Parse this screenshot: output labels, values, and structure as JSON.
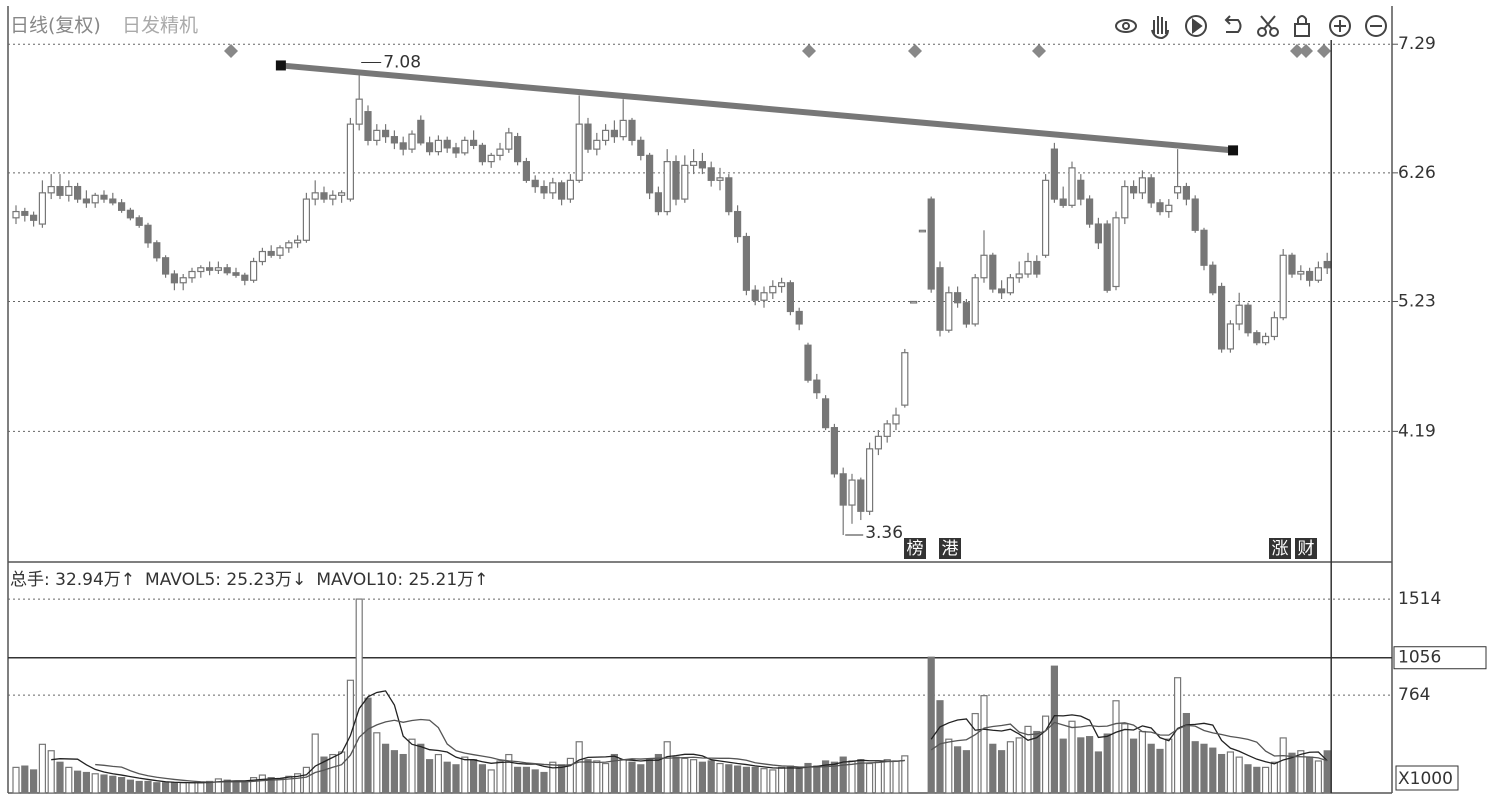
{
  "chart_data": [
    {
      "type": "candlestick",
      "title": "日线(复权)",
      "subtitle": "日发精机",
      "ylim": [
        3.16,
        7.58
      ],
      "yticks": [
        4.19,
        5.23,
        6.26,
        7.29
      ],
      "grid": true,
      "color": "#777777",
      "trendline": [
        [
          30.1,
          7.12
        ],
        [
          138.3,
          6.44
        ]
      ],
      "events": [
        "榜",
        "港",
        "涨",
        "财"
      ],
      "open": [
        5.9,
        5.95,
        5.92,
        5.85,
        6.1,
        6.15,
        6.08,
        6.15,
        6.05,
        6.02,
        6.08,
        6.05,
        6.02,
        5.96,
        5.9,
        5.84,
        5.7,
        5.58,
        5.45,
        5.38,
        5.42,
        5.47,
        5.5,
        5.48,
        5.5,
        5.46,
        5.44,
        5.4,
        5.55,
        5.63,
        5.6,
        5.66,
        5.7,
        5.72,
        6.05,
        6.1,
        6.05,
        6.08,
        6.05,
        6.65,
        6.75,
        6.52,
        6.6,
        6.55,
        6.5,
        6.45,
        6.68,
        6.5,
        6.43,
        6.52,
        6.46,
        6.42,
        6.52,
        6.48,
        6.35,
        6.4,
        6.45,
        6.55,
        6.35,
        6.2,
        6.15,
        6.1,
        6.18,
        6.05,
        6.2,
        6.65,
        6.45,
        6.52,
        6.6,
        6.55,
        6.68,
        6.52,
        6.4,
        6.1,
        5.95,
        6.35,
        6.05,
        6.32,
        6.35,
        6.3,
        6.2,
        6.22,
        5.95,
        5.75,
        5.32,
        5.24,
        5.3,
        5.35,
        5.38,
        5.15,
        4.88,
        4.6,
        4.45,
        4.22,
        3.85,
        3.6,
        3.8,
        3.55,
        4.05,
        4.15,
        4.25,
        4.4,
        5.23,
        5.8,
        6.05,
        5.5,
        5.0,
        5.3,
        5.22,
        5.05,
        5.42,
        5.6,
        5.33,
        5.3,
        5.42,
        5.45,
        5.55,
        5.6,
        6.45,
        6.05,
        6.0,
        6.2,
        6.05,
        5.85,
        5.85,
        5.35,
        5.9,
        6.15,
        6.1,
        6.22,
        6.02,
        5.95,
        6.1,
        6.15,
        6.05,
        5.8,
        5.52,
        5.35,
        4.85,
        5.05,
        5.2,
        4.98,
        4.9,
        4.95,
        5.1,
        5.6,
        5.45,
        5.47,
        5.4,
        5.55
      ],
      "high": [
        6.0,
        5.98,
        5.95,
        6.2,
        6.25,
        6.25,
        6.2,
        6.18,
        6.12,
        6.1,
        6.12,
        6.1,
        6.05,
        5.98,
        5.92,
        5.86,
        5.72,
        5.6,
        5.48,
        5.45,
        5.5,
        5.52,
        5.55,
        5.55,
        5.53,
        5.5,
        5.46,
        5.58,
        5.66,
        5.68,
        5.68,
        5.72,
        5.76,
        6.1,
        6.2,
        6.15,
        6.12,
        6.12,
        6.7,
        7.08,
        6.8,
        6.65,
        6.65,
        6.6,
        6.55,
        6.6,
        6.72,
        6.55,
        6.56,
        6.55,
        6.5,
        6.55,
        6.6,
        6.5,
        6.42,
        6.5,
        6.62,
        6.58,
        6.38,
        6.24,
        6.2,
        6.22,
        6.2,
        6.25,
        6.88,
        6.7,
        6.58,
        6.65,
        6.68,
        6.85,
        6.7,
        6.55,
        6.42,
        6.15,
        6.45,
        6.4,
        6.4,
        6.45,
        6.42,
        6.35,
        6.3,
        6.25,
        6.0,
        5.78,
        5.36,
        5.35,
        5.4,
        5.42,
        5.4,
        5.18,
        4.9,
        4.65,
        4.48,
        4.25,
        3.9,
        3.85,
        3.82,
        4.1,
        4.2,
        4.28,
        4.38,
        4.85,
        5.23,
        5.8,
        6.07,
        5.55,
        5.35,
        5.35,
        5.25,
        5.45,
        5.8,
        5.62,
        5.4,
        5.45,
        5.55,
        5.62,
        5.6,
        6.25,
        6.5,
        6.15,
        6.35,
        6.25,
        6.08,
        5.9,
        5.88,
        5.95,
        6.2,
        6.2,
        6.28,
        6.25,
        6.05,
        6.05,
        6.45,
        6.18,
        6.08,
        5.82,
        5.55,
        5.38,
        5.08,
        5.3,
        5.22,
        5.0,
        4.98,
        5.15,
        5.65,
        5.62,
        5.52,
        5.5,
        5.55,
        5.62
      ],
      "low": [
        5.85,
        5.87,
        5.83,
        5.82,
        6.05,
        6.05,
        6.03,
        6.02,
        5.98,
        5.98,
        6.02,
        6.0,
        5.94,
        5.88,
        5.82,
        5.66,
        5.55,
        5.42,
        5.32,
        5.32,
        5.38,
        5.42,
        5.44,
        5.45,
        5.44,
        5.42,
        5.36,
        5.38,
        5.52,
        5.58,
        5.57,
        5.62,
        5.66,
        5.7,
        6.0,
        6.02,
        6.0,
        6.02,
        6.03,
        6.6,
        6.48,
        6.48,
        6.5,
        6.45,
        6.4,
        6.42,
        6.48,
        6.4,
        6.4,
        6.42,
        6.38,
        6.4,
        6.45,
        6.32,
        6.3,
        6.36,
        6.42,
        6.32,
        6.18,
        6.1,
        6.05,
        6.05,
        6.0,
        6.02,
        6.18,
        6.42,
        6.4,
        6.48,
        6.5,
        6.52,
        6.48,
        6.36,
        6.05,
        5.92,
        5.92,
        6.0,
        6.02,
        6.25,
        6.25,
        6.15,
        6.12,
        5.92,
        5.7,
        5.28,
        5.2,
        5.18,
        5.25,
        5.3,
        5.12,
        5.0,
        4.58,
        4.45,
        4.2,
        3.82,
        3.36,
        3.45,
        3.48,
        3.52,
        4.0,
        4.1,
        4.2,
        4.38,
        5.23,
        5.8,
        5.3,
        4.95,
        4.98,
        5.18,
        5.02,
        5.03,
        5.38,
        5.3,
        5.25,
        5.28,
        5.38,
        5.42,
        5.42,
        5.58,
        6.02,
        5.98,
        5.98,
        6.0,
        5.82,
        5.65,
        5.3,
        5.32,
        5.85,
        6.05,
        6.05,
        5.98,
        5.92,
        5.9,
        6.05,
        6.0,
        5.78,
        5.48,
        5.28,
        4.82,
        4.82,
        5.0,
        4.95,
        4.88,
        4.88,
        4.92,
        5.08,
        5.42,
        5.4,
        5.35,
        5.38,
        5.45
      ],
      "close": [
        5.95,
        5.92,
        5.88,
        6.1,
        6.15,
        6.08,
        6.15,
        6.05,
        6.02,
        6.08,
        6.05,
        6.02,
        5.96,
        5.9,
        5.84,
        5.7,
        5.58,
        5.45,
        5.38,
        5.42,
        5.47,
        5.5,
        5.48,
        5.5,
        5.46,
        5.44,
        5.4,
        5.55,
        5.63,
        5.6,
        5.66,
        5.7,
        5.72,
        6.05,
        6.1,
        6.05,
        6.08,
        6.1,
        6.65,
        6.85,
        6.52,
        6.6,
        6.55,
        6.5,
        6.45,
        6.57,
        6.5,
        6.43,
        6.52,
        6.46,
        6.42,
        6.52,
        6.48,
        6.35,
        6.4,
        6.45,
        6.58,
        6.35,
        6.2,
        6.15,
        6.1,
        6.18,
        6.05,
        6.2,
        6.65,
        6.45,
        6.52,
        6.6,
        6.55,
        6.68,
        6.52,
        6.4,
        6.1,
        5.95,
        6.35,
        6.05,
        6.32,
        6.35,
        6.3,
        6.2,
        6.22,
        5.95,
        5.75,
        5.32,
        5.24,
        5.3,
        5.35,
        5.38,
        5.15,
        5.05,
        4.6,
        4.5,
        4.22,
        3.85,
        3.6,
        3.8,
        3.55,
        4.05,
        4.15,
        4.25,
        4.32,
        4.82,
        5.23,
        5.8,
        5.33,
        5.0,
        5.3,
        5.22,
        5.05,
        5.42,
        5.6,
        5.33,
        5.3,
        5.42,
        5.45,
        5.55,
        5.45,
        6.2,
        6.05,
        6.0,
        6.3,
        6.05,
        5.85,
        5.7,
        5.32,
        5.9,
        6.15,
        6.1,
        6.22,
        6.02,
        5.95,
        6.0,
        6.15,
        6.05,
        5.8,
        5.52,
        5.3,
        4.85,
        5.05,
        5.2,
        4.98,
        4.9,
        4.95,
        5.1,
        5.6,
        5.45,
        5.47,
        5.4,
        5.5,
        5.5
      ]
    },
    {
      "type": "bar",
      "ylim": [
        0,
        1780
      ],
      "yticks": [
        764,
        1514
      ],
      "cursor_value": 1056,
      "unit_label": "X1000",
      "grid": true,
      "series": [
        {
          "name": "总手: 32.94万↑",
          "color": "#777777",
          "values": [
            200,
            210,
            180,
            380,
            330,
            240,
            200,
            170,
            160,
            150,
            140,
            130,
            120,
            100,
            90,
            90,
            80,
            80,
            80,
            80,
            80,
            80,
            90,
            110,
            100,
            90,
            80,
            120,
            140,
            120,
            110,
            130,
            150,
            200,
            460,
            280,
            300,
            320,
            880,
            1514,
            740,
            470,
            380,
            330,
            300,
            420,
            380,
            260,
            300,
            240,
            220,
            280,
            260,
            220,
            180,
            250,
            300,
            200,
            200,
            180,
            160,
            240,
            220,
            270,
            400,
            260,
            250,
            230,
            300,
            260,
            240,
            220,
            260,
            300,
            400,
            280,
            270,
            260,
            240,
            250,
            230,
            220,
            210,
            200,
            200,
            190,
            180,
            200,
            210,
            190,
            230,
            210,
            250,
            240,
            280,
            250,
            260,
            230,
            240,
            260,
            250,
            290,
            null,
            null,
            1060,
            720,
            420,
            360,
            330,
            620,
            760,
            380,
            330,
            400,
            430,
            520,
            480,
            600,
            990,
            420,
            560,
            430,
            440,
            320,
            460,
            720,
            540,
            420,
            480,
            380,
            340,
            420,
            900,
            620,
            400,
            380,
            350,
            300,
            320,
            280,
            220,
            200,
            200,
            240,
            430,
            310,
            330,
            280,
            250,
            329
          ]
        },
        {
          "name": "MAVOL5: 25.23万↓",
          "color": "#222222",
          "values": [
            null,
            null,
            null,
            null,
            260,
            268,
            266,
            264,
            220,
            184,
            164,
            150,
            140,
            128,
            116,
            106,
            96,
            88,
            84,
            82,
            80,
            80,
            82,
            88,
            92,
            94,
            94,
            100,
            106,
            110,
            114,
            124,
            130,
            142,
            210,
            244,
            278,
            312,
            448,
            659,
            751,
            785,
            797,
            687,
            444,
            380,
            362,
            338,
            332,
            320,
            280,
            260,
            260,
            244,
            232,
            238,
            242,
            230,
            226,
            226,
            208,
            196,
            200,
            214,
            258,
            278,
            280,
            282,
            288,
            260,
            256,
            250,
            256,
            256,
            284,
            292,
            302,
            302,
            290,
            260,
            250,
            240,
            230,
            222,
            212,
            204,
            196,
            194,
            196,
            194,
            202,
            208,
            218,
            224,
            242,
            246,
            256,
            252,
            252,
            248,
            248,
            254,
            null,
            null,
            420,
            516,
            548,
            570,
            578,
            490,
            498,
            490,
            484,
            498,
            460,
            412,
            432,
            486,
            604,
            602,
            610,
            600,
            568,
            434,
            442,
            474,
            496,
            492,
            524,
            508,
            432,
            408,
            504,
            532,
            536,
            544,
            530,
            410,
            350,
            326,
            294,
            264,
            244,
            228,
            258,
            276,
            302,
            318,
            320,
            252
          ]
        },
        {
          "name": "MAVOL10: 25.21万↑",
          "color": "#555555",
          "values": [
            null,
            null,
            null,
            null,
            null,
            null,
            null,
            null,
            null,
            222,
            216,
            208,
            202,
            174,
            150,
            135,
            123,
            114,
            106,
            99,
            93,
            88,
            85,
            86,
            87,
            87,
            87,
            91,
            97,
            101,
            104,
            109,
            115,
            124,
            160,
            179,
            201,
            221,
            295,
            435,
            498,
            532,
            555,
            568,
            552,
            566,
            574,
            568,
            510,
            382,
            330,
            311,
            299,
            288,
            276,
            259,
            251,
            245,
            235,
            229,
            223,
            219,
            215,
            220,
            242,
            243,
            238,
            241,
            251,
            259,
            267,
            265,
            269,
            272,
            272,
            274,
            276,
            279,
            273,
            272,
            271,
            271,
            266,
            256,
            236,
            227,
            218,
            212,
            209,
            203,
            203,
            202,
            206,
            210,
            218,
            224,
            232,
            235,
            238,
            245,
            247,
            255,
            null,
            null,
            336,
            384,
            398,
            409,
            416,
            455,
            507,
            519,
            527,
            538,
            475,
            455,
            461,
            485,
            551,
            531,
            511,
            516,
            527,
            519,
            522,
            542,
            548,
            530,
            479,
            475,
            453,
            452,
            498,
            528,
            522,
            488,
            469,
            457,
            441,
            431,
            419,
            397,
            327,
            289,
            292,
            285,
            283,
            281,
            274,
            252
          ]
        }
      ]
    }
  ]
}
